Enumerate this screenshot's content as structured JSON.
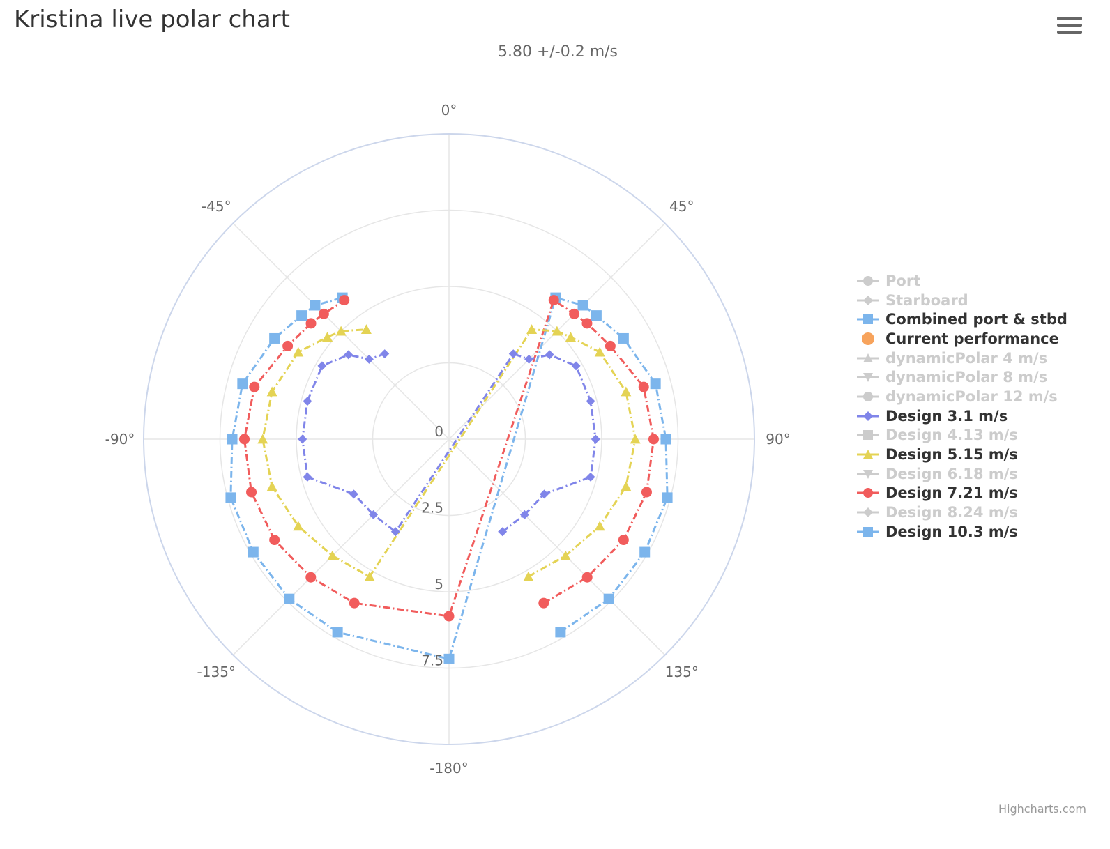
{
  "title": "Kristina live polar chart",
  "subtitle": "5.80 +/-0.2 m/s",
  "credits": "Highcharts.com",
  "menu_icon": "hamburger-menu-icon",
  "chart_data": {
    "type": "polar-line",
    "angle_labels": [
      "0°",
      "45°",
      "90°",
      "135°",
      "-180°",
      "-135°",
      "-90°",
      "-45°"
    ],
    "angle_label_values": [
      0,
      45,
      90,
      135,
      180,
      -135,
      -90,
      -45
    ],
    "radial_labels": [
      "0",
      "2.5",
      "5",
      "7.5"
    ],
    "radial_label_values": [
      0,
      2.5,
      5,
      7.5
    ],
    "radial_range": [
      0,
      10
    ],
    "grid": true,
    "legend_position": "right",
    "legend": [
      {
        "name": "Port",
        "visible": false,
        "marker": "circle",
        "color": "#cccccc"
      },
      {
        "name": "Starboard",
        "visible": false,
        "marker": "diamond",
        "color": "#cccccc"
      },
      {
        "name": "Combined port & stbd",
        "visible": true,
        "marker": "square",
        "color": "#7cb5ec"
      },
      {
        "name": "Current performance",
        "visible": true,
        "marker": "circle",
        "color": "#f7a35c",
        "line": false
      },
      {
        "name": "dynamicPolar 4 m/s",
        "visible": false,
        "marker": "triangle",
        "color": "#cccccc"
      },
      {
        "name": "dynamicPolar 8 m/s",
        "visible": false,
        "marker": "triangle-down",
        "color": "#cccccc"
      },
      {
        "name": "dynamicPolar 12 m/s",
        "visible": false,
        "marker": "circle",
        "color": "#cccccc"
      },
      {
        "name": "Design 3.1 m/s",
        "visible": true,
        "marker": "diamond",
        "color": "#8085e9"
      },
      {
        "name": "Design 4.13 m/s",
        "visible": false,
        "marker": "square",
        "color": "#cccccc"
      },
      {
        "name": "Design 5.15 m/s",
        "visible": true,
        "marker": "triangle",
        "color": "#e4d354"
      },
      {
        "name": "Design 6.18 m/s",
        "visible": false,
        "marker": "triangle-down",
        "color": "#cccccc"
      },
      {
        "name": "Design 7.21 m/s",
        "visible": true,
        "marker": "circle",
        "color": "#f15c5c"
      },
      {
        "name": "Design 8.24 m/s",
        "visible": false,
        "marker": "diamond",
        "color": "#cccccc"
      },
      {
        "name": "Design 10.3 m/s",
        "visible": true,
        "marker": "square",
        "color": "#7cb5ec"
      }
    ],
    "series": [
      {
        "name": "Design 10.3 m/s",
        "color": "#7cb5ec",
        "marker": "square",
        "angles": [
          -180,
          -150,
          -135,
          -120,
          -105,
          -90,
          -75,
          -60,
          -50,
          -45,
          -37
        ],
        "values": [
          7.2,
          7.3,
          7.4,
          7.4,
          7.4,
          7.1,
          7.0,
          6.6,
          6.3,
          6.2,
          5.8
        ]
      },
      {
        "name": "Design 7.21 m/s",
        "color": "#f15c5c",
        "marker": "circle",
        "angles": [
          -180,
          -150,
          -135,
          -120,
          -105,
          -90,
          -75,
          -60,
          -50,
          -45,
          -37
        ],
        "values": [
          5.8,
          6.2,
          6.4,
          6.6,
          6.7,
          6.7,
          6.6,
          6.1,
          5.9,
          5.8,
          5.7
        ]
      },
      {
        "name": "Design 5.15 m/s",
        "color": "#e4d354",
        "marker": "triangle",
        "angles": [
          -150,
          -135,
          -120,
          -105,
          -90,
          -75,
          -60,
          -50,
          -45,
          -37
        ],
        "values": [
          5.2,
          5.4,
          5.7,
          6.0,
          6.1,
          6.0,
          5.7,
          5.2,
          5.0,
          4.5
        ]
      },
      {
        "name": "Design 3.1 m/s",
        "color": "#8085e9",
        "marker": "diamond",
        "angles": [
          -150,
          -135,
          -120,
          -105,
          -90,
          -75,
          -60,
          -50,
          -45,
          -37
        ],
        "values": [
          3.5,
          3.5,
          3.6,
          4.8,
          4.8,
          4.8,
          4.8,
          4.3,
          3.7,
          3.5
        ]
      }
    ]
  }
}
